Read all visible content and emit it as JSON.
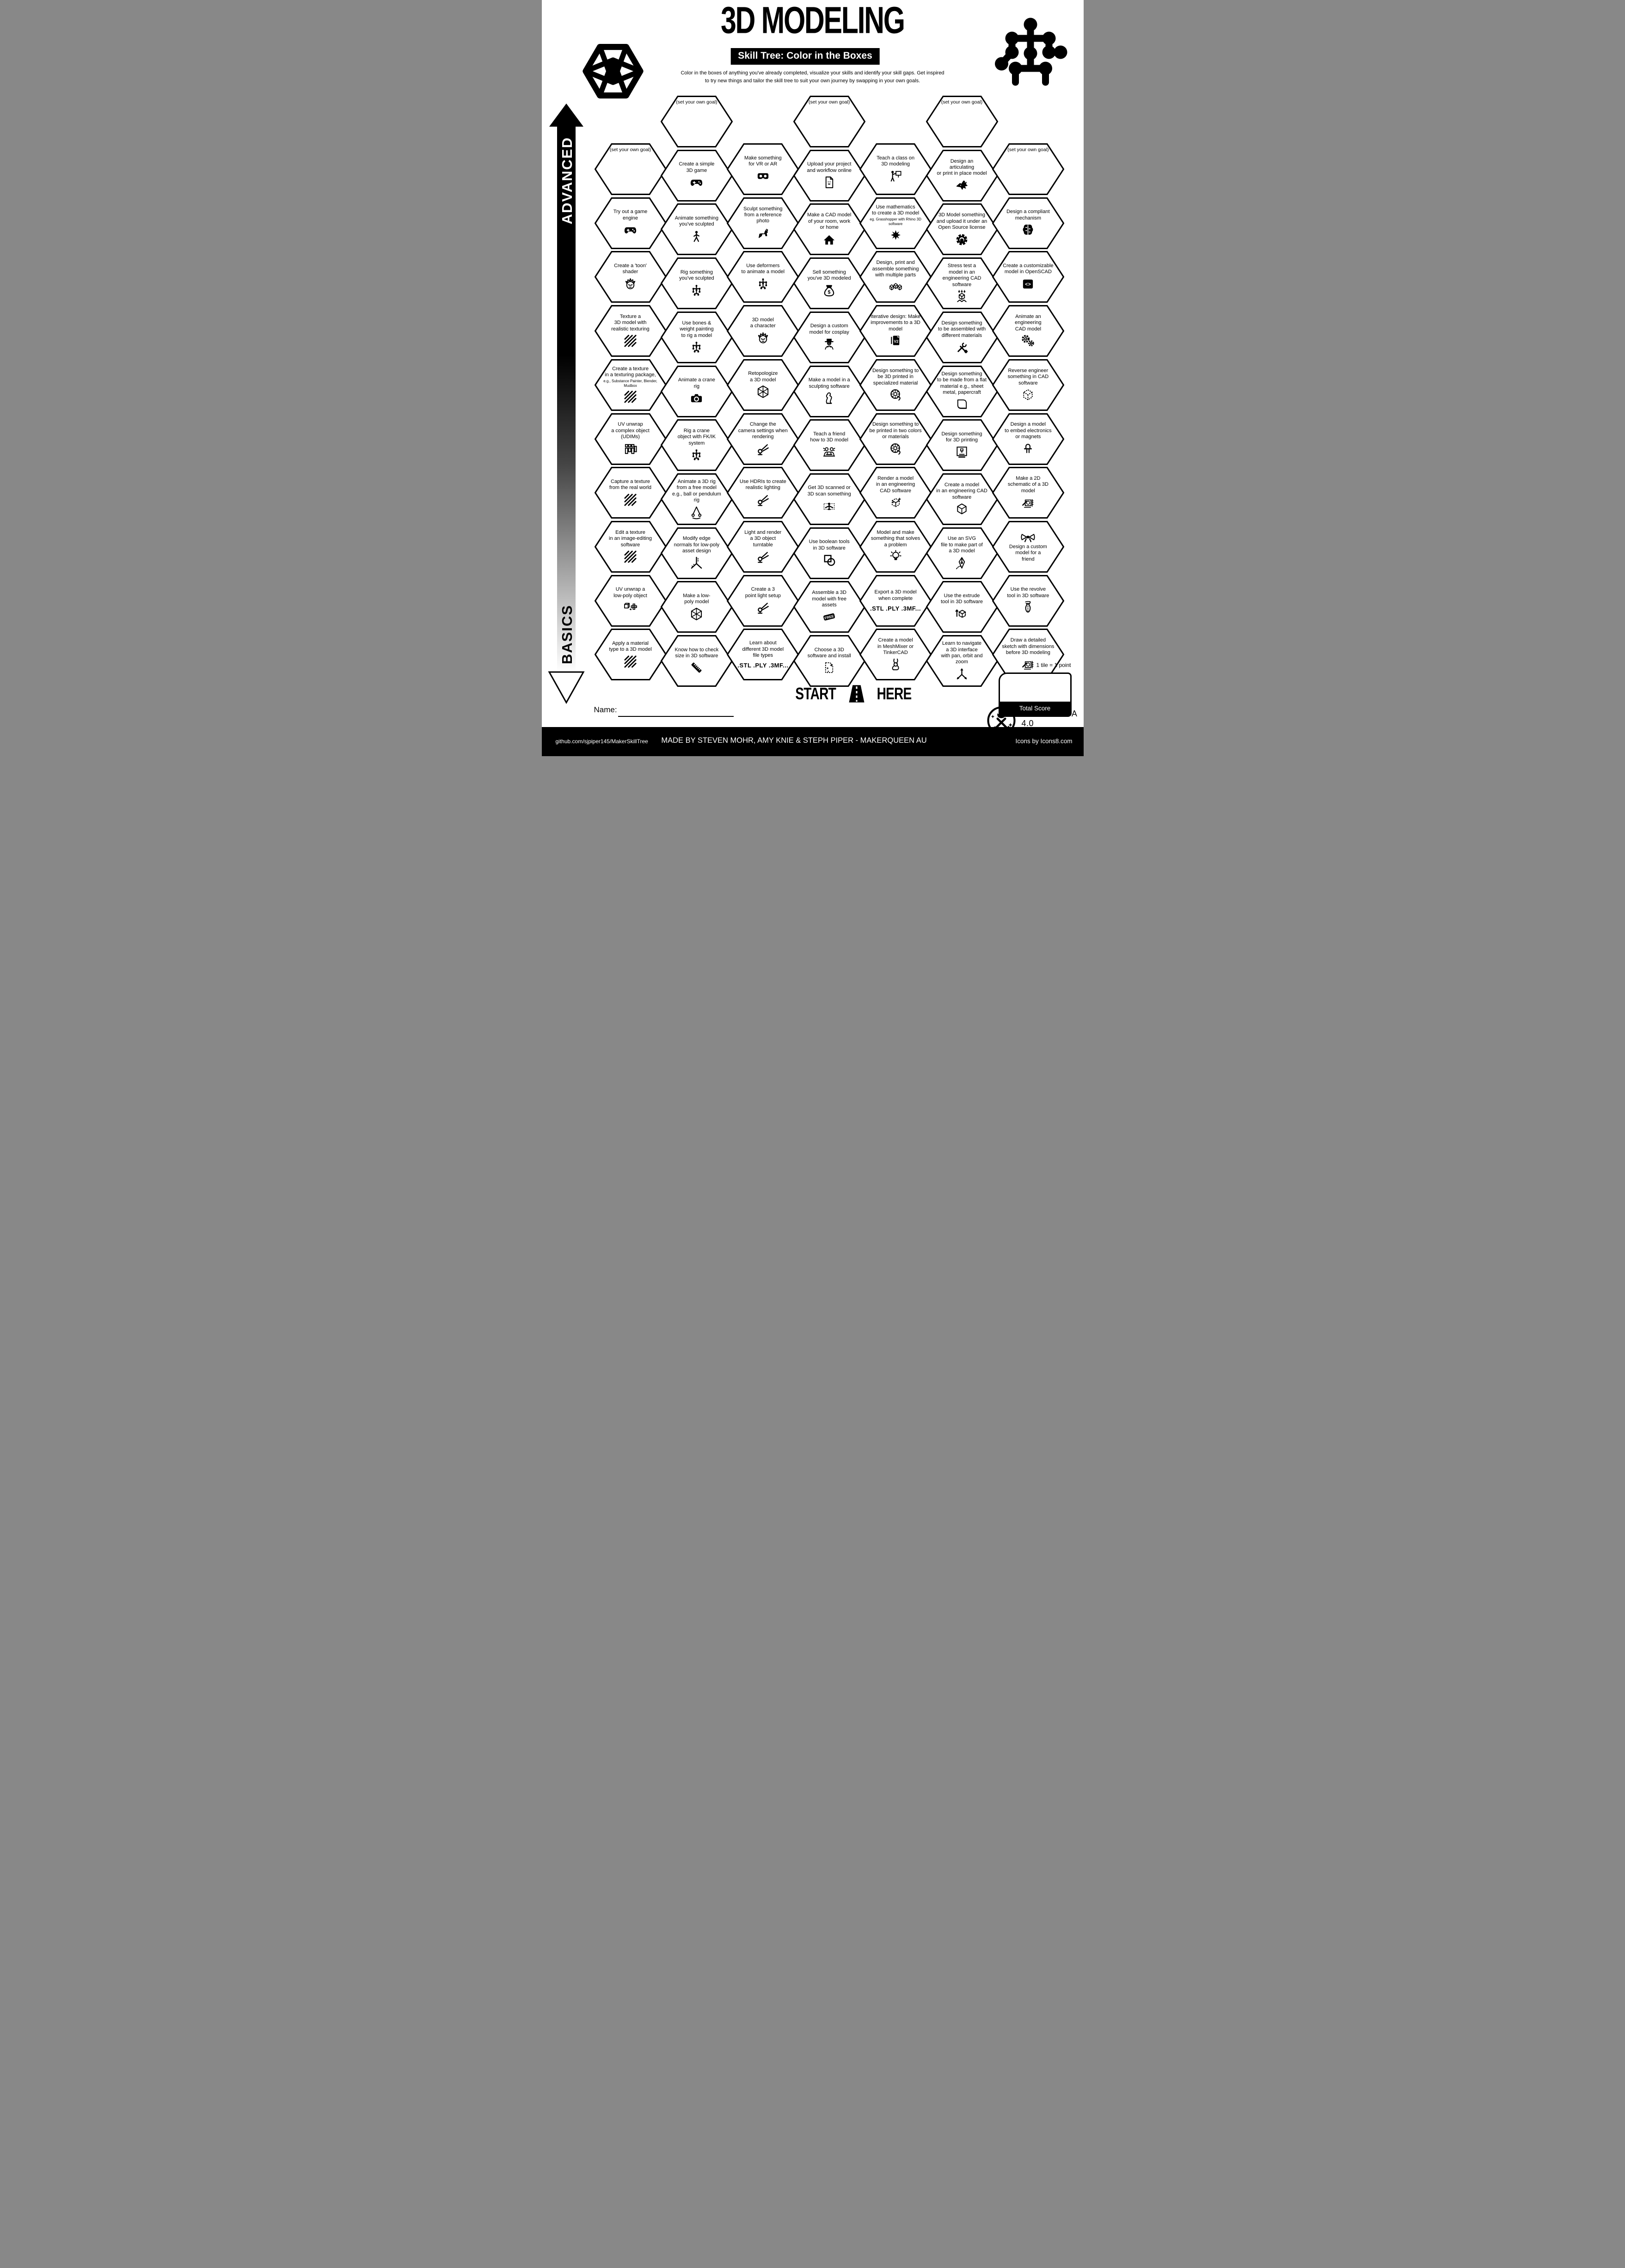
{
  "page": {
    "title": "3D MODELING",
    "subtitle": "Skill Tree: Color in the Boxes",
    "description_line1": "Color in the boxes of anything you've already completed, visualize your skills and identify your skill gaps.  Get inspired",
    "description_line2": "to try new things and tailor the skill tree to suit your own journey by swapping in your own goals.",
    "axis": {
      "top_label": "ADVANCED",
      "bottom_label": "BASICS"
    },
    "logos": {
      "left": "icosahedron-logo",
      "right": "skill-tree-logo"
    },
    "start_here": {
      "start": "START",
      "here": "HERE",
      "icon": "road-icon"
    },
    "name_label": "Name:",
    "score": {
      "tile_note": "1 tile = 1 point",
      "total_label": "Total Score"
    },
    "license": "CC BY-NC-SA 4.0",
    "license_icon": "maker-badge-icon",
    "footer": {
      "left": "github.com/sjpiper145/MakerSkillTree",
      "center": "MADE BY STEVEN MOHR, AMY KNIE & STEPH PIPER  -  MAKERQUEEN AU",
      "right": "Icons by Icons8.com"
    },
    "colors": {
      "ink": "#000000",
      "paper": "#ffffff"
    }
  },
  "grid": {
    "columns": [
      {
        "tiles": [
          {
            "title": "(set your own goal)",
            "goal": true
          },
          {
            "title": "Try out a game\nengine",
            "icon": "controller"
          },
          {
            "title": "Create a 'toon'\nshader",
            "icon": "face"
          },
          {
            "title": "Texture a\n3D model with\nrealistic texturing",
            "icon": "stripes"
          },
          {
            "title": "Create a texture\nin a texturing package,",
            "note": "e.g., Substance Painter, Blender,\nMudbox",
            "icon": "stripes"
          },
          {
            "title": "UV unwrap\na complex object\n(UDIMs)",
            "icon": "udim"
          },
          {
            "title": "Capture a texture\nfrom the real world",
            "icon": "stripes"
          },
          {
            "title": "Edit a texture\nin an image-editing\nsoftware",
            "icon": "stripes"
          },
          {
            "title": "UV unwrap a\nlow-poly object",
            "icon": "cubeunwrap"
          },
          {
            "title": "Apply a material\ntype to a 3D model",
            "icon": "stripes"
          }
        ]
      },
      {
        "tiles": [
          {
            "title": "(set your own goal)",
            "goal": true
          },
          {
            "title": "Create a simple\n3D game",
            "icon": "controller"
          },
          {
            "title": "Animate something\nyou've sculpted",
            "icon": "walk"
          },
          {
            "title": "Rig something\nyou've sculpted",
            "icon": "rig"
          },
          {
            "title": "Use bones &\nweight painting\nto rig a model",
            "icon": "rig"
          },
          {
            "title": "Animate a crane\nrig",
            "icon": "camera"
          },
          {
            "title": "Rig a crane\nobject with FK/IK\nsystem",
            "icon": "rig"
          },
          {
            "title": "Animate a 3D rig\nfrom a free model\ne.g., ball or pendulum rig",
            "icon": "pendulum"
          },
          {
            "title": "Modify edge\nnormals for low-poly\nasset design",
            "icon": "normals"
          },
          {
            "title": "Make a low-\npoly model",
            "icon": "lowpoly"
          },
          {
            "title": "Know how to check\nsize in 3D software",
            "icon": "ruler"
          }
        ]
      },
      {
        "tiles": [
          {
            "title": "Make something\nfor VR or AR",
            "icon": "vr"
          },
          {
            "title": "Sculpt something\nfrom a reference\nphoto",
            "icon": "dog"
          },
          {
            "title": "Use deformers\nto animate a model",
            "icon": "rig"
          },
          {
            "title": "3D model\na character",
            "icon": "face"
          },
          {
            "title": "Retopologize\na 3D model",
            "icon": "lowpoly"
          },
          {
            "title": "Change the\ncamera settings when\nrendering",
            "icon": "spotlight"
          },
          {
            "title": "Use HDRIs to create\nrealistic lighting",
            "icon": "spotlight"
          },
          {
            "title": "Light and render\na 3D object\nturntable",
            "icon": "spotlight"
          },
          {
            "title": "Create a 3\npoint light setup",
            "icon": "spotlight"
          },
          {
            "title": "Learn about\ndifferent 3D model\nfile types",
            "filetypes": ".STL .PLY .3MF..."
          }
        ]
      },
      {
        "tiles": [
          {
            "title": "(set your own goal)",
            "goal": true
          },
          {
            "title": "Upload your project\nand workflow online",
            "icon": "file"
          },
          {
            "title": "Make a CAD model\nof your room, work\nor home",
            "icon": "house"
          },
          {
            "title": "Sell something\nyou've 3D modeled",
            "icon": "moneybag"
          },
          {
            "title": "Design a custom\nmodel for cosplay",
            "icon": "cosplay"
          },
          {
            "title": "Make a model in a\nsculpting software",
            "icon": "statue"
          },
          {
            "title": "Teach a friend\nhow to 3D model",
            "icon": "friends"
          },
          {
            "title": "Get 3D scanned or\n3D scan something",
            "icon": "scan"
          },
          {
            "title": "Use boolean tools\nin 3D software",
            "icon": "boolean"
          },
          {
            "title": "Assemble a 3D\nmodel with free\nassets",
            "icon": "freetag"
          },
          {
            "title": "Choose a 3D\nsoftware and install",
            "icon": "sparklefile"
          }
        ]
      },
      {
        "tiles": [
          {
            "title": "Teach a class on\n3D modeling",
            "icon": "presenter"
          },
          {
            "title": "Use mathematics\nto create a 3D model",
            "note": "eg. Grasshopper with Rhino 3D\nsoftware",
            "icon": "fractal"
          },
          {
            "title": "Design, print and\nassemble something\nwith multiple parts",
            "icon": "cubes3"
          },
          {
            "title": "Iterative design:  Make\nimprovements to a 3D\nmodel",
            "icon": "filev2"
          },
          {
            "title": "Design something to\nbe 3D printed in\nspecialized material",
            "icon": "spool"
          },
          {
            "title": "Design something to\nbe printed in two colors\nor materials",
            "icon": "spool"
          },
          {
            "title": "Render a model\nin an engineering\nCAD software",
            "icon": "renderfile"
          },
          {
            "title": "Model and make\nsomething that solves\na problem",
            "icon": "bulb"
          },
          {
            "title": "Export a 3D model\nwhen complete",
            "filetypes": ".STL .PLY .3MF..."
          },
          {
            "title": "Create a model\nin MeshMixer or\nTinkerCAD",
            "icon": "rabbit"
          }
        ]
      },
      {
        "tiles": [
          {
            "title": "(set your own goal)",
            "goal": true
          },
          {
            "title": "Design an\narticulating\nor print in place model",
            "icon": "dragon"
          },
          {
            "title": "3D Model something\nand upload it under an\nOpen Source license",
            "icon": "gear"
          },
          {
            "title": "Stress test a\nmodel in an\nengineering CAD software",
            "icon": "stresscube"
          },
          {
            "title": "Design something\nto be assembled with\ndifferent materials",
            "icon": "tools"
          },
          {
            "title": "Design something\nto be made from a flat\nmaterial e.g., sheet\nmetal, papercraft",
            "icon": "paper"
          },
          {
            "title": "Design something\nfor 3D printing",
            "icon": "printer"
          },
          {
            "title": "Create a model\nin an engineering CAD\nsoftware",
            "icon": "cube"
          },
          {
            "title": "Use an SVG\nfile to make part of\na 3D model",
            "icon": "pen"
          },
          {
            "title": "Use the extrude\ntool in 3D software",
            "icon": "extrude"
          },
          {
            "title": "Learn to navigate\na 3D interface\nwith pan, orbit and\nzoom",
            "icon": "axes"
          }
        ]
      },
      {
        "tiles": [
          {
            "title": "(set your own goal)",
            "goal": true
          },
          {
            "title": "Design a compliant\nmechanism",
            "icon": "brain"
          },
          {
            "title": "Create a customizable\nmodel in OpenSCAD",
            "icon": "codewin"
          },
          {
            "title": "Animate an\nengineering\nCAD model",
            "icon": "gears2"
          },
          {
            "title": "Reverse engineer\nsomething in CAD\nsoftware",
            "icon": "cubedash"
          },
          {
            "title": "Design a model\nto embed electronics\nor magnets",
            "icon": "led"
          },
          {
            "title": "Make a 2D\nschematic of a 3D\nmodel",
            "icon": "schematic"
          },
          {
            "title": "Design a custom\nmodel for a\nfriend",
            "icon": "bow",
            "icon_pos": "top"
          },
          {
            "title": "Use the revolve\ntool in 3D software",
            "icon": "vase"
          },
          {
            "title": "Draw a detailed\nsketch with dimensions\nbefore 3D modeling",
            "icon": "schematic"
          }
        ]
      }
    ]
  }
}
